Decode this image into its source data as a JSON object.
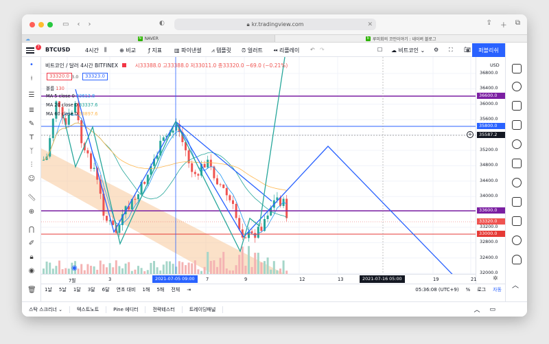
{
  "browser": {
    "url": "kr.tradingview.com",
    "tabs": [
      {
        "label": "NAVER"
      },
      {
        "label": "루미회의 코인이야기 : 네이버 블로그"
      }
    ]
  },
  "toolbar": {
    "symbol": "BTCUSD",
    "interval": "4시간",
    "compare": "비교",
    "indicators": "지표",
    "financials": "파이낸셜",
    "templates": "템플릿",
    "alert": "얼러트",
    "replay": "리플레이",
    "layout_name": "비트코인",
    "publish": "퍼블리쉬",
    "notification_count": "7"
  },
  "legend": {
    "title": "비트코인 / 달러  4시간  BITFINEX",
    "ohlc": "시33388.0  고33388.0  저33011.0  종33320.0  −69.0 (−0.21%)",
    "sell_price": "33320.0",
    "spread": "3.0",
    "buy_price": "33323.0",
    "volume_label": "볼륨",
    "volume_value": "130",
    "ma": [
      {
        "label": "MA 5 close 0",
        "value": "33613.8",
        "color": "#2196f3"
      },
      {
        "label": "MA 20 close 0",
        "value": "33337.6",
        "color": "#26a69a"
      },
      {
        "label": "MA 60 close 0",
        "value": "33897.6",
        "color": "#ffb74d"
      }
    ]
  },
  "yaxis": {
    "currency": "USD",
    "ticks": [
      "36800.0",
      "36400.0",
      "36000.0",
      "35600.0",
      "35200.0",
      "34800.0",
      "34400.0",
      "34000.0",
      "33200.0",
      "32800.0",
      "32400.0",
      "32000.0"
    ],
    "badges": [
      {
        "value": "36600.0",
        "color": "#7b1fa2"
      },
      {
        "value": "35800.0",
        "color": "#2962ff"
      },
      {
        "value": "35587.2",
        "color": "#131722"
      },
      {
        "value": "33600.0",
        "color": "#7b1fa2"
      },
      {
        "value": "33320.0",
        "color": "#ef5350"
      },
      {
        "value": "33000.0",
        "color": "#e53935"
      }
    ]
  },
  "xaxis": {
    "ticks": [
      "7월",
      "3",
      "7",
      "9",
      "13",
      "19",
      "21"
    ],
    "tick_12": "12",
    "crosshair_date": "2021-07-05  09:00",
    "end_date": "2021-07-16  05:00"
  },
  "bottom": {
    "ranges": [
      "1날",
      "5날",
      "1달",
      "3달",
      "6달",
      "연초 대비",
      "1해",
      "5해",
      "전체"
    ],
    "clock": "05:36:08 (UTC+9)",
    "pct": "%",
    "log": "로그",
    "auto": "자동"
  },
  "panel": {
    "tabs": [
      "스탁 스크리너",
      "텍스트노트",
      "Pine 에디터",
      "전략테스터",
      "트레이딩패널"
    ]
  }
}
